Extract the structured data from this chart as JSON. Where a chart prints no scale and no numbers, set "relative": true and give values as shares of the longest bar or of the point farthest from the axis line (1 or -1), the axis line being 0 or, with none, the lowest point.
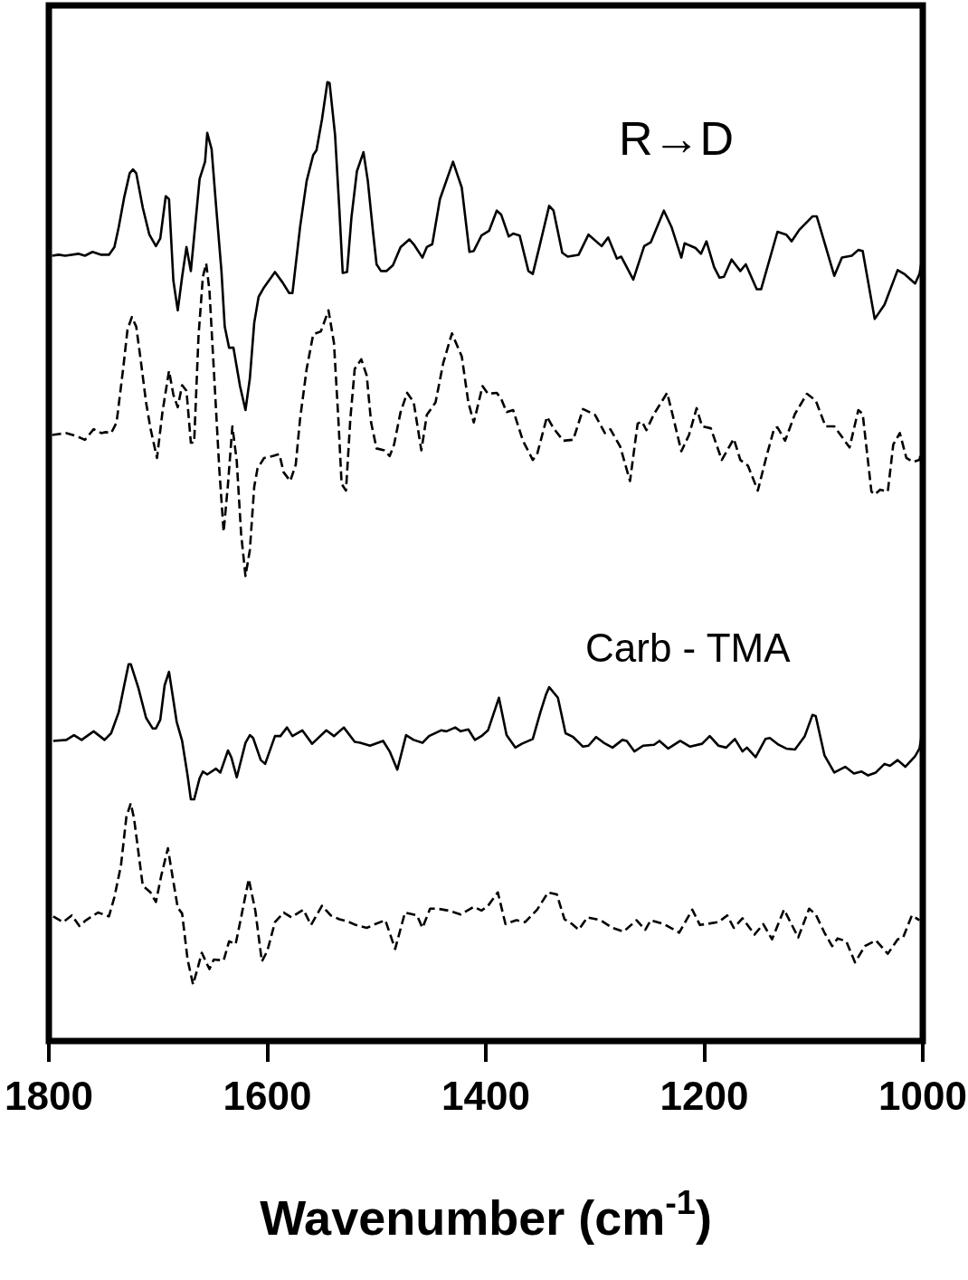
{
  "chart_data": {
    "type": "line",
    "relative": true,
    "xlabel": "Wavenumber (cm$^{-1}$)",
    "xlim": [
      1800,
      1000
    ],
    "xticks": [
      1800,
      1600,
      1400,
      1200,
      1000
    ],
    "tick_labels": "x",
    "annotations": [
      "R→D",
      "Carb - TMA"
    ],
    "series": [
      {
        "color": "#000000",
        "line_style": "solid",
        "x": [
          1797,
          1791,
          1785,
          1773,
          1767,
          1760,
          1752,
          1745,
          1740,
          1736,
          1731,
          1726,
          1723,
          1720,
          1714,
          1708,
          1702,
          1698,
          1693,
          1690,
          1686,
          1682,
          1678,
          1674,
          1670,
          1662,
          1657,
          1655,
          1651,
          1647,
          1642,
          1639,
          1635,
          1631,
          1625,
          1620,
          1616,
          1612,
          1608,
          1603,
          1593,
          1586,
          1580,
          1577,
          1570,
          1564,
          1558,
          1555,
          1550,
          1545,
          1543,
          1538,
          1534,
          1531,
          1527,
          1523,
          1518,
          1512,
          1508,
          1503,
          1500,
          1496,
          1491,
          1485,
          1478,
          1470,
          1466,
          1458,
          1454,
          1449,
          1442,
          1430,
          1422,
          1415,
          1411,
          1404,
          1397,
          1390,
          1386,
          1379,
          1375,
          1369,
          1361,
          1357,
          1351,
          1342,
          1338,
          1330,
          1325,
          1315,
          1306,
          1294,
          1288,
          1280,
          1276,
          1265,
          1255,
          1249,
          1237,
          1230,
          1221,
          1218,
          1208,
          1203,
          1198,
          1191,
          1186,
          1182,
          1175,
          1167,
          1162,
          1152,
          1148,
          1133,
          1125,
          1120,
          1113,
          1101,
          1097,
          1081,
          1074,
          1065,
          1059,
          1055,
          1044,
          1035,
          1023,
          1017,
          1007,
          1003,
          1000
        ],
        "values": [
          0.819,
          0.82,
          0.819,
          0.821,
          0.819,
          0.823,
          0.82,
          0.82,
          0.828,
          0.849,
          0.88,
          0.905,
          0.909,
          0.905,
          0.869,
          0.841,
          0.829,
          0.837,
          0.881,
          0.878,
          0.793,
          0.762,
          0.797,
          0.828,
          0.803,
          0.899,
          0.917,
          0.947,
          0.93,
          0.872,
          0.803,
          0.745,
          0.723,
          0.723,
          0.683,
          0.658,
          0.691,
          0.749,
          0.776,
          0.786,
          0.802,
          0.791,
          0.78,
          0.78,
          0.849,
          0.897,
          0.924,
          0.929,
          0.961,
          1.0,
          0.999,
          0.945,
          0.866,
          0.801,
          0.802,
          0.859,
          0.907,
          0.927,
          0.897,
          0.841,
          0.81,
          0.803,
          0.803,
          0.809,
          0.828,
          0.836,
          0.831,
          0.817,
          0.828,
          0.831,
          0.878,
          0.917,
          0.89,
          0.823,
          0.824,
          0.84,
          0.845,
          0.866,
          0.862,
          0.839,
          0.842,
          0.84,
          0.803,
          0.8,
          0.828,
          0.871,
          0.866,
          0.822,
          0.818,
          0.82,
          0.841,
          0.829,
          0.838,
          0.816,
          0.818,
          0.794,
          0.829,
          0.833,
          0.866,
          0.849,
          0.817,
          0.832,
          0.827,
          0.821,
          0.834,
          0.807,
          0.796,
          0.797,
          0.815,
          0.803,
          0.81,
          0.784,
          0.784,
          0.844,
          0.841,
          0.834,
          0.846,
          0.86,
          0.86,
          0.798,
          0.817,
          0.819,
          0.825,
          0.824,
          0.753,
          0.768,
          0.804,
          0.8,
          0.79,
          0.8,
          0.82
        ]
      },
      {
        "color": "#000000",
        "line_style": "dashed",
        "x": [
          1797,
          1791,
          1784,
          1775,
          1767,
          1759,
          1752,
          1748,
          1743,
          1738,
          1732,
          1728,
          1724,
          1720,
          1716,
          1711,
          1707,
          1701,
          1696,
          1690,
          1686,
          1682,
          1678,
          1674,
          1670,
          1667,
          1663,
          1659,
          1656,
          1653,
          1648,
          1644,
          1640,
          1636,
          1632,
          1628,
          1624,
          1620,
          1616,
          1612,
          1609,
          1603,
          1595,
          1589,
          1585,
          1579,
          1574,
          1570,
          1564,
          1558,
          1551,
          1544,
          1539,
          1535,
          1532,
          1528,
          1524,
          1520,
          1514,
          1509,
          1505,
          1500,
          1493,
          1488,
          1484,
          1478,
          1472,
          1466,
          1459,
          1454,
          1446,
          1439,
          1431,
          1422,
          1416,
          1411,
          1403,
          1398,
          1390,
          1386,
          1381,
          1375,
          1366,
          1357,
          1353,
          1344,
          1338,
          1329,
          1320,
          1311,
          1300,
          1291,
          1286,
          1277,
          1268,
          1261,
          1257,
          1253,
          1246,
          1234,
          1229,
          1221,
          1214,
          1207,
          1202,
          1194,
          1184,
          1173,
          1167,
          1160,
          1151,
          1143,
          1136,
          1133,
          1126,
          1117,
          1106,
          1098,
          1089,
          1081,
          1067,
          1059,
          1055,
          1047,
          1044,
          1039,
          1032,
          1027,
          1021,
          1015,
          1009,
          1003,
          1000
        ],
        "values": [
          0.632,
          0.633,
          0.634,
          0.631,
          0.627,
          0.638,
          0.634,
          0.635,
          0.634,
          0.645,
          0.701,
          0.742,
          0.755,
          0.745,
          0.711,
          0.666,
          0.639,
          0.608,
          0.656,
          0.699,
          0.674,
          0.661,
          0.684,
          0.678,
          0.624,
          0.624,
          0.735,
          0.797,
          0.811,
          0.783,
          0.68,
          0.597,
          0.531,
          0.581,
          0.641,
          0.605,
          0.529,
          0.485,
          0.512,
          0.578,
          0.597,
          0.608,
          0.61,
          0.612,
          0.593,
          0.584,
          0.601,
          0.649,
          0.701,
          0.737,
          0.74,
          0.762,
          0.728,
          0.649,
          0.581,
          0.574,
          0.649,
          0.701,
          0.711,
          0.694,
          0.645,
          0.618,
          0.616,
          0.61,
          0.622,
          0.656,
          0.676,
          0.666,
          0.616,
          0.653,
          0.666,
          0.707,
          0.738,
          0.714,
          0.666,
          0.645,
          0.683,
          0.675,
          0.676,
          0.67,
          0.656,
          0.658,
          0.626,
          0.606,
          0.612,
          0.651,
          0.639,
          0.626,
          0.627,
          0.659,
          0.653,
          0.634,
          0.638,
          0.62,
          0.584,
          0.644,
          0.646,
          0.637,
          0.654,
          0.676,
          0.653,
          0.615,
          0.632,
          0.66,
          0.641,
          0.639,
          0.606,
          0.628,
          0.606,
          0.6,
          0.574,
          0.61,
          0.639,
          0.64,
          0.626,
          0.654,
          0.675,
          0.668,
          0.641,
          0.641,
          0.619,
          0.658,
          0.654,
          0.573,
          0.57,
          0.575,
          0.573,
          0.622,
          0.634,
          0.608,
          0.604,
          0.606,
          0.624
        ]
      },
      {
        "color": "#000000",
        "line_style": "solid",
        "x": [
          1796,
          1784,
          1777,
          1770,
          1759,
          1749,
          1743,
          1736,
          1731,
          1727,
          1725,
          1718,
          1711,
          1705,
          1702,
          1698,
          1694,
          1690,
          1683,
          1678,
          1673,
          1670,
          1667,
          1662,
          1659,
          1655,
          1647,
          1643,
          1636,
          1633,
          1628,
          1620,
          1616,
          1613,
          1606,
          1602,
          1593,
          1588,
          1582,
          1577,
          1568,
          1559,
          1546,
          1539,
          1530,
          1520,
          1515,
          1506,
          1494,
          1488,
          1481,
          1473,
          1466,
          1458,
          1452,
          1441,
          1436,
          1428,
          1423,
          1416,
          1410,
          1404,
          1398,
          1388,
          1381,
          1373,
          1367,
          1357,
          1350,
          1345,
          1342,
          1334,
          1327,
          1320,
          1311,
          1306,
          1299,
          1292,
          1284,
          1275,
          1271,
          1264,
          1256,
          1246,
          1241,
          1233,
          1222,
          1213,
          1202,
          1195,
          1187,
          1180,
          1172,
          1165,
          1161,
          1153,
          1144,
          1140,
          1132,
          1125,
          1117,
          1108,
          1101,
          1098,
          1090,
          1081,
          1071,
          1063,
          1056,
          1050,
          1043,
          1035,
          1030,
          1023,
          1016,
          1007,
          1003,
          1001
        ],
        "values": [
          0.313,
          0.314,
          0.319,
          0.314,
          0.323,
          0.314,
          0.321,
          0.343,
          0.371,
          0.393,
          0.393,
          0.368,
          0.337,
          0.326,
          0.326,
          0.335,
          0.371,
          0.385,
          0.333,
          0.313,
          0.277,
          0.252,
          0.252,
          0.274,
          0.281,
          0.278,
          0.284,
          0.28,
          0.303,
          0.296,
          0.275,
          0.311,
          0.319,
          0.316,
          0.293,
          0.289,
          0.318,
          0.318,
          0.327,
          0.318,
          0.324,
          0.31,
          0.324,
          0.318,
          0.327,
          0.312,
          0.311,
          0.308,
          0.313,
          0.302,
          0.283,
          0.319,
          0.314,
          0.311,
          0.318,
          0.324,
          0.323,
          0.327,
          0.323,
          0.325,
          0.314,
          0.318,
          0.324,
          0.358,
          0.319,
          0.306,
          0.31,
          0.315,
          0.343,
          0.361,
          0.369,
          0.358,
          0.321,
          0.317,
          0.307,
          0.308,
          0.317,
          0.311,
          0.306,
          0.314,
          0.313,
          0.302,
          0.308,
          0.309,
          0.313,
          0.305,
          0.313,
          0.307,
          0.31,
          0.318,
          0.308,
          0.306,
          0.315,
          0.302,
          0.306,
          0.296,
          0.315,
          0.316,
          0.309,
          0.305,
          0.304,
          0.318,
          0.34,
          0.339,
          0.298,
          0.28,
          0.286,
          0.279,
          0.281,
          0.277,
          0.28,
          0.289,
          0.287,
          0.293,
          0.286,
          0.297,
          0.305,
          0.319
        ]
      },
      {
        "color": "#000000",
        "line_style": "dashed",
        "x": [
          1796,
          1787,
          1779,
          1772,
          1766,
          1755,
          1745,
          1740,
          1734,
          1729,
          1725,
          1722,
          1717,
          1714,
          1707,
          1702,
          1697,
          1691,
          1687,
          1682,
          1678,
          1673,
          1668,
          1664,
          1660,
          1653,
          1649,
          1640,
          1635,
          1629,
          1624,
          1617,
          1611,
          1605,
          1600,
          1593,
          1585,
          1578,
          1567,
          1560,
          1550,
          1542,
          1534,
          1527,
          1519,
          1509,
          1501,
          1492,
          1483,
          1474,
          1463,
          1458,
          1451,
          1444,
          1434,
          1423,
          1411,
          1404,
          1398,
          1389,
          1382,
          1372,
          1364,
          1353,
          1343,
          1335,
          1328,
          1321,
          1315,
          1307,
          1295,
          1284,
          1274,
          1262,
          1254,
          1249,
          1237,
          1223,
          1211,
          1204,
          1187,
          1179,
          1173,
          1165,
          1154,
          1146,
          1138,
          1127,
          1114,
          1104,
          1098,
          1090,
          1083,
          1078,
          1070,
          1062,
          1053,
          1043,
          1032,
          1023,
          1018,
          1010,
          1003
        ],
        "values": [
          0.13,
          0.124,
          0.131,
          0.12,
          0.126,
          0.134,
          0.13,
          0.15,
          0.183,
          0.234,
          0.248,
          0.232,
          0.188,
          0.162,
          0.155,
          0.145,
          0.173,
          0.201,
          0.173,
          0.139,
          0.133,
          0.085,
          0.059,
          0.075,
          0.092,
          0.075,
          0.085,
          0.084,
          0.104,
          0.101,
          0.129,
          0.169,
          0.136,
          0.083,
          0.094,
          0.124,
          0.134,
          0.129,
          0.137,
          0.121,
          0.141,
          0.131,
          0.127,
          0.125,
          0.121,
          0.118,
          0.122,
          0.126,
          0.096,
          0.134,
          0.131,
          0.118,
          0.138,
          0.138,
          0.136,
          0.132,
          0.14,
          0.136,
          0.141,
          0.155,
          0.122,
          0.126,
          0.124,
          0.137,
          0.155,
          0.153,
          0.127,
          0.122,
          0.116,
          0.129,
          0.126,
          0.118,
          0.114,
          0.126,
          0.116,
          0.126,
          0.122,
          0.113,
          0.137,
          0.121,
          0.124,
          0.131,
          0.118,
          0.128,
          0.111,
          0.122,
          0.106,
          0.137,
          0.108,
          0.138,
          0.132,
          0.113,
          0.099,
          0.107,
          0.104,
          0.082,
          0.099,
          0.105,
          0.091,
          0.106,
          0.108,
          0.131,
          0.126
        ]
      }
    ]
  }
}
